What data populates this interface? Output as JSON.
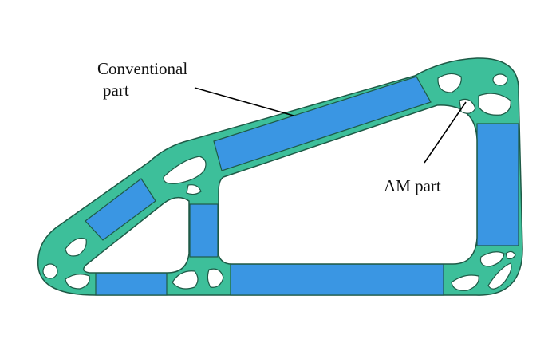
{
  "labels": {
    "conventional_line1": "Conventional",
    "conventional_line2": "part",
    "am_part": "AM part"
  },
  "colors": {
    "am_node": "#3dbf9a",
    "conventional_member": "#3a96e3",
    "outline": "#1e5a46",
    "leader": "#000000",
    "background": "#ffffff"
  }
}
